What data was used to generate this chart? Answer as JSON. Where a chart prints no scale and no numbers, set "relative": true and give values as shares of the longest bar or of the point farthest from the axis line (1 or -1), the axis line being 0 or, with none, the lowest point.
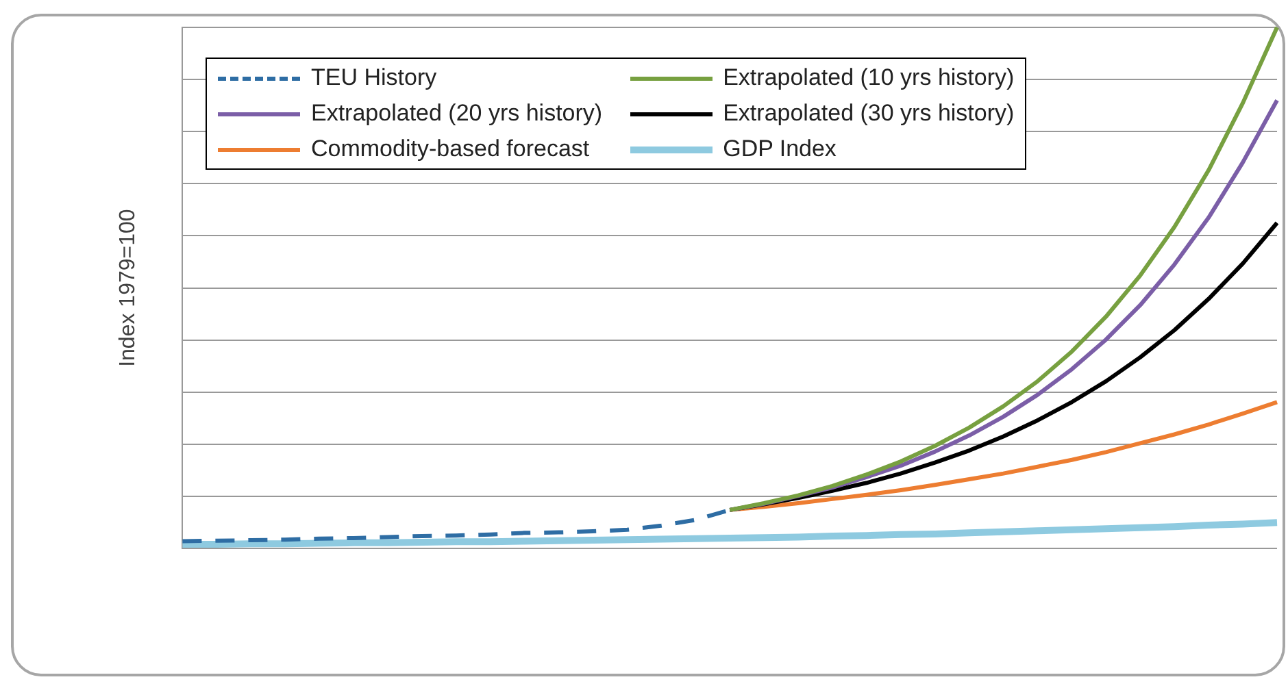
{
  "chart_data": {
    "type": "line",
    "relative": true,
    "ylabel": "Index 1979=100",
    "grid": "y",
    "legend": "top left",
    "marker": "none",
    "categories": [
      null,
      null,
      null,
      null,
      null,
      null,
      null,
      null,
      null,
      null,
      null,
      null,
      null,
      null,
      null,
      null,
      null,
      null,
      null,
      null,
      null,
      null,
      null,
      null,
      null,
      null,
      null,
      null,
      null,
      null,
      null,
      null,
      null
    ],
    "series": [
      {
        "name": "TEU History",
        "color": "#2e6da4",
        "line_style": "dashed",
        "values": [
          0.014,
          0.015,
          0.016,
          0.017,
          0.019,
          0.02,
          0.022,
          0.024,
          0.025,
          0.027,
          0.03,
          0.031,
          0.033,
          0.036,
          0.044,
          0.055,
          0.074,
          null,
          null,
          null,
          null,
          null,
          null,
          null,
          null,
          null,
          null,
          null,
          null,
          null,
          null,
          null,
          null
        ]
      },
      {
        "name": "Extrapolated (10 yrs history)",
        "color": "#77a040",
        "values": [
          null,
          null,
          null,
          null,
          null,
          null,
          null,
          null,
          null,
          null,
          null,
          null,
          null,
          null,
          null,
          null,
          0.074,
          0.087,
          0.102,
          0.12,
          0.142,
          0.167,
          0.197,
          0.232,
          0.273,
          0.321,
          0.378,
          0.445,
          0.524,
          0.617,
          0.726,
          0.855,
          1.0
        ]
      },
      {
        "name": "Extrapolated (20 yrs history)",
        "color": "#7b5ea7",
        "values": [
          null,
          null,
          null,
          null,
          null,
          null,
          null,
          null,
          null,
          null,
          null,
          null,
          null,
          null,
          null,
          null,
          0.074,
          0.086,
          0.101,
          0.117,
          0.137,
          0.159,
          0.186,
          0.217,
          0.253,
          0.295,
          0.344,
          0.401,
          0.467,
          0.545,
          0.635,
          0.741,
          0.86
        ]
      },
      {
        "name": "Extrapolated (30 yrs history)",
        "color": "#000000",
        "values": [
          null,
          null,
          null,
          null,
          null,
          null,
          null,
          null,
          null,
          null,
          null,
          null,
          null,
          null,
          null,
          null,
          0.074,
          0.085,
          0.097,
          0.111,
          0.126,
          0.144,
          0.165,
          0.188,
          0.215,
          0.246,
          0.281,
          0.321,
          0.367,
          0.419,
          0.479,
          0.547,
          0.625
        ]
      },
      {
        "name": "Commodity-based forecast",
        "color": "#ed7d31",
        "values": [
          null,
          null,
          null,
          null,
          null,
          null,
          null,
          null,
          null,
          null,
          null,
          null,
          null,
          null,
          null,
          null,
          0.074,
          0.08,
          0.087,
          0.095,
          0.103,
          0.112,
          0.122,
          0.133,
          0.144,
          0.157,
          0.17,
          0.185,
          0.202,
          0.219,
          0.238,
          0.259,
          0.281
        ]
      },
      {
        "name": "GDP Index",
        "color": "#8ecae0",
        "values": [
          0.008,
          0.008,
          0.009,
          0.009,
          0.01,
          0.011,
          0.011,
          0.012,
          0.013,
          0.013,
          0.014,
          0.015,
          0.016,
          0.017,
          0.018,
          0.019,
          0.02,
          0.021,
          0.022,
          0.024,
          0.025,
          0.027,
          0.028,
          0.03,
          0.032,
          0.034,
          0.036,
          0.038,
          0.04,
          0.042,
          0.045,
          0.047,
          0.05
        ]
      }
    ]
  }
}
